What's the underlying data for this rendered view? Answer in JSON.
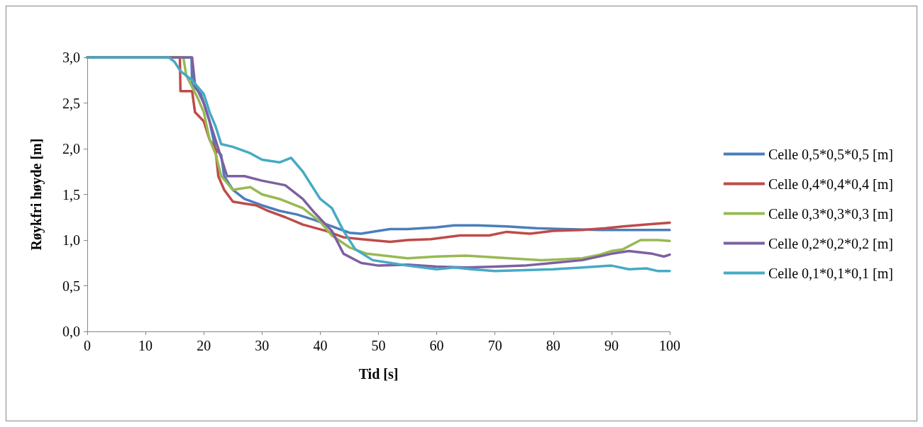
{
  "chart_data": {
    "type": "line",
    "xlabel": "Tid [s]",
    "ylabel": "Røykfri høyde [m]",
    "xlim": [
      0,
      100
    ],
    "xticks": [
      0,
      10,
      20,
      30,
      40,
      50,
      60,
      70,
      80,
      90,
      100
    ],
    "ylim": [
      0,
      3
    ],
    "yticks": [
      {
        "value": 0,
        "label": "0,0"
      },
      {
        "value": 0.5,
        "label": "0,5"
      },
      {
        "value": 1,
        "label": "1,0"
      },
      {
        "value": 1.5,
        "label": "1,5"
      },
      {
        "value": 2,
        "label": "2,0"
      },
      {
        "value": 2.5,
        "label": "2,5"
      },
      {
        "value": 3,
        "label": "3,0"
      }
    ],
    "grid": false,
    "legend": "right",
    "marker": "none",
    "line_style": "solid",
    "series": [
      {
        "name": "Celle 0,5*0,5*0,5 [m]",
        "color": "#4a7ebb",
        "x": [
          0,
          17.9,
          18,
          19.5,
          21,
          22,
          23,
          23.5,
          25,
          27,
          30,
          33,
          36,
          39,
          42,
          45,
          47,
          50,
          52,
          55,
          60,
          63,
          67,
          72,
          77,
          82,
          88,
          95,
          100
        ],
        "values": [
          3,
          3,
          2.7,
          2.6,
          2.3,
          2.0,
          1.93,
          1.7,
          1.55,
          1.45,
          1.38,
          1.32,
          1.28,
          1.22,
          1.15,
          1.08,
          1.07,
          1.1,
          1.12,
          1.12,
          1.14,
          1.16,
          1.16,
          1.15,
          1.13,
          1.12,
          1.11,
          1.11,
          1.11
        ]
      },
      {
        "name": "Celle 0,4*0,4*0,4 [m]",
        "color": "#be4b48",
        "x": [
          0,
          15.9,
          16,
          18,
          18.5,
          20,
          21,
          22,
          22.5,
          23.5,
          25,
          27,
          29,
          31,
          34,
          37,
          41,
          44,
          47,
          52,
          55,
          59,
          64,
          69,
          72,
          76,
          80,
          85,
          89,
          92,
          96,
          100
        ],
        "values": [
          3,
          3,
          2.63,
          2.63,
          2.4,
          2.3,
          2.1,
          2.0,
          1.7,
          1.55,
          1.42,
          1.4,
          1.38,
          1.32,
          1.25,
          1.17,
          1.1,
          1.03,
          1.01,
          0.98,
          1.0,
          1.01,
          1.05,
          1.05,
          1.09,
          1.07,
          1.1,
          1.11,
          1.13,
          1.15,
          1.17,
          1.19
        ]
      },
      {
        "name": "Celle 0,3*0,3*0,3 [m]",
        "color": "#98b954",
        "x": [
          0,
          16.5,
          17,
          19,
          20,
          21,
          22,
          23,
          25,
          28,
          30,
          33,
          37,
          40,
          42,
          45,
          48,
          51,
          55,
          60,
          65,
          70,
          75,
          78,
          82,
          85,
          88,
          90,
          92,
          95,
          98,
          100
        ],
        "values": [
          3,
          3,
          2.8,
          2.55,
          2.4,
          2.1,
          1.95,
          1.7,
          1.55,
          1.58,
          1.5,
          1.45,
          1.35,
          1.2,
          1.05,
          0.92,
          0.85,
          0.83,
          0.8,
          0.82,
          0.83,
          0.81,
          0.79,
          0.78,
          0.79,
          0.8,
          0.84,
          0.88,
          0.9,
          1.0,
          1.0,
          0.99
        ]
      },
      {
        "name": "Celle 0,2*0,2*0,2 [m]",
        "color": "#7d60a0",
        "x": [
          0,
          18,
          18.5,
          20,
          21,
          22.5,
          24,
          27,
          30,
          34,
          37,
          39,
          42,
          44,
          47,
          50,
          55,
          60,
          65,
          70,
          75,
          80,
          85,
          90,
          93,
          97,
          99,
          100
        ],
        "values": [
          3,
          3,
          2.7,
          2.5,
          2.3,
          2.0,
          1.7,
          1.7,
          1.65,
          1.6,
          1.45,
          1.3,
          1.1,
          0.85,
          0.75,
          0.72,
          0.73,
          0.71,
          0.7,
          0.71,
          0.72,
          0.75,
          0.78,
          0.85,
          0.88,
          0.85,
          0.82,
          0.84
        ]
      },
      {
        "name": "Celle 0,1*0,1*0,1 [m]",
        "color": "#46aac5",
        "x": [
          0,
          14,
          15,
          16,
          18,
          20,
          21,
          22,
          23,
          25,
          28,
          30,
          33,
          35,
          37,
          40,
          42,
          44,
          46,
          49,
          52,
          55,
          60,
          63,
          66,
          70,
          75,
          80,
          85,
          90,
          93,
          96,
          98,
          100
        ],
        "values": [
          3,
          3,
          2.95,
          2.85,
          2.75,
          2.6,
          2.4,
          2.25,
          2.05,
          2.02,
          1.95,
          1.88,
          1.85,
          1.9,
          1.75,
          1.45,
          1.35,
          1.1,
          0.9,
          0.78,
          0.75,
          0.72,
          0.68,
          0.7,
          0.68,
          0.66,
          0.67,
          0.68,
          0.7,
          0.72,
          0.68,
          0.69,
          0.66,
          0.66
        ]
      }
    ]
  }
}
